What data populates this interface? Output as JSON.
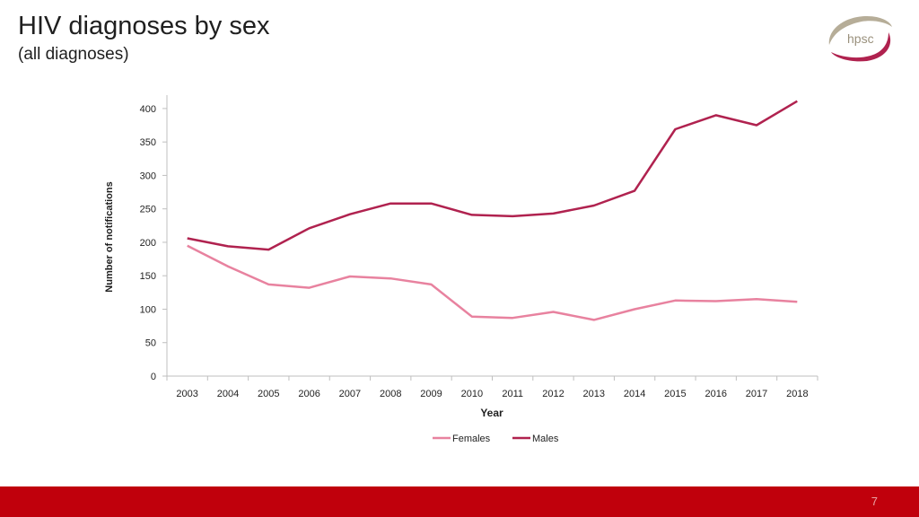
{
  "slide": {
    "title": "HIV diagnoses by sex",
    "subtitle": "(all diagnoses)",
    "logo_text": "hpsc",
    "page_number": "7"
  },
  "colors": {
    "females": "#e8829f",
    "males": "#b0224f",
    "footer": "#c0000c",
    "logo": "#b6ad98"
  },
  "chart_data": {
    "type": "line",
    "title": "",
    "xlabel": "Year",
    "ylabel": "Number of notifications",
    "ylim": [
      0,
      420
    ],
    "yticks": [
      0,
      50,
      100,
      150,
      200,
      250,
      300,
      350,
      400
    ],
    "grid": false,
    "legend_position": "bottom",
    "x": [
      "2003",
      "2004",
      "2005",
      "2006",
      "2007",
      "2008",
      "2009",
      "2010",
      "2011",
      "2012",
      "2013",
      "2014",
      "2015",
      "2016",
      "2017",
      "2018"
    ],
    "series": [
      {
        "name": "Females",
        "values": [
          195,
          164,
          137,
          132,
          149,
          146,
          137,
          89,
          87,
          96,
          84,
          100,
          113,
          112,
          115,
          111
        ]
      },
      {
        "name": "Males",
        "values": [
          206,
          194,
          189,
          221,
          242,
          258,
          258,
          241,
          239,
          243,
          255,
          277,
          369,
          390,
          375,
          411
        ]
      }
    ]
  }
}
